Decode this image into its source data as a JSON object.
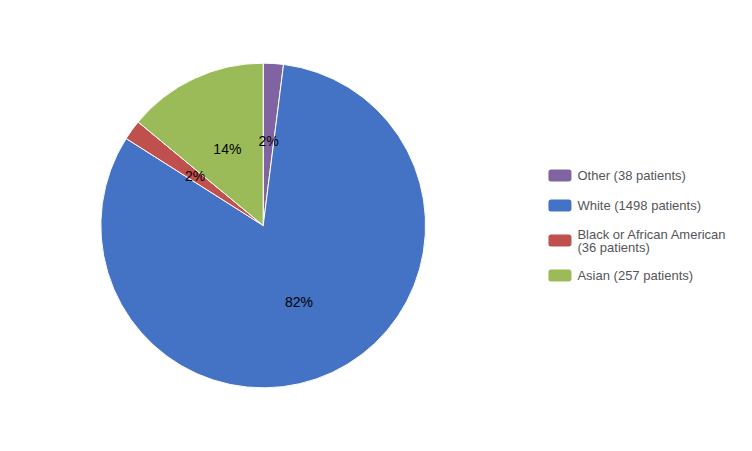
{
  "chart_data": {
    "type": "pie",
    "categories": [
      "Other (38 patients)",
      "White (1498 patients)",
      "Black or African American\n(36 patients)",
      "Asian (257 patients)"
    ],
    "values": [
      2,
      82,
      2,
      14
    ],
    "value_labels": [
      "2%",
      "82%",
      "2%",
      "14%"
    ],
    "colors": [
      "#8064A2",
      "#4472C4",
      "#C0504D",
      "#9BBB59"
    ],
    "data_labels": true,
    "legend": "right"
  }
}
